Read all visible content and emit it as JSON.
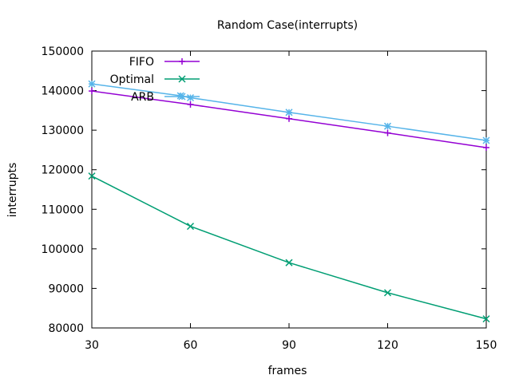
{
  "chart_data": {
    "type": "line",
    "title": "Random Case(interrupts)",
    "xlabel": "frames",
    "ylabel": "interrupts",
    "xlim": [
      30,
      150
    ],
    "ylim": [
      80000,
      150000
    ],
    "x_ticks": [
      30,
      60,
      90,
      120,
      150
    ],
    "y_ticks": [
      80000,
      90000,
      100000,
      110000,
      120000,
      130000,
      140000,
      150000
    ],
    "grid": false,
    "legend_position": "top-left",
    "series": [
      {
        "name": "FIFO",
        "color": "#9400d3",
        "marker": "plus",
        "points": [
          {
            "x": 30,
            "y": 139900
          },
          {
            "x": 60,
            "y": 136500
          },
          {
            "x": 90,
            "y": 132900
          },
          {
            "x": 120,
            "y": 129300
          },
          {
            "x": 150,
            "y": 125600
          }
        ]
      },
      {
        "name": "Optimal",
        "color": "#009e73",
        "marker": "cross",
        "points": [
          {
            "x": 30,
            "y": 118400
          },
          {
            "x": 60,
            "y": 105700
          },
          {
            "x": 90,
            "y": 96500
          },
          {
            "x": 120,
            "y": 88900
          },
          {
            "x": 150,
            "y": 82300
          }
        ]
      },
      {
        "name": "ARB",
        "color": "#56b4e9",
        "marker": "star",
        "points": [
          {
            "x": 30,
            "y": 141700
          },
          {
            "x": 57,
            "y": 138700
          },
          {
            "x": 60,
            "y": 138200
          },
          {
            "x": 90,
            "y": 134500
          },
          {
            "x": 120,
            "y": 131000
          },
          {
            "x": 150,
            "y": 127400
          }
        ]
      }
    ]
  }
}
